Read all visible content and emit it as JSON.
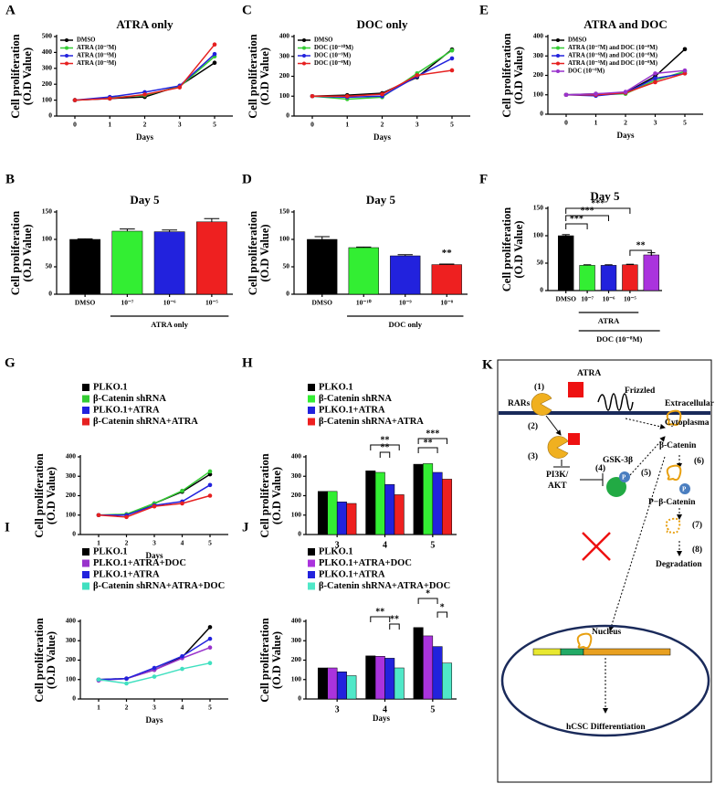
{
  "chart_data": [
    {
      "panel": "A",
      "type": "line",
      "title": "ATRA only",
      "ylabel": [
        "Cell proliferation",
        "(O.D Value)"
      ],
      "xlabel": "Days",
      "categories": [
        "0",
        "1",
        "2",
        "3",
        "5"
      ],
      "ylim": [
        0,
        500
      ],
      "yticks": [
        0,
        100,
        200,
        300,
        400,
        500
      ],
      "legend": "upper left",
      "series": [
        {
          "name": "DMSO",
          "color": "#000000",
          "values": [
            100,
            110,
            120,
            190,
            335
          ]
        },
        {
          "name": "ATRA (10⁻⁷M)",
          "color": "#33cc33",
          "values": [
            100,
            115,
            130,
            185,
            375
          ]
        },
        {
          "name": "ATRA (10⁻⁶M)",
          "color": "#2222dd",
          "values": [
            100,
            120,
            150,
            190,
            390
          ]
        },
        {
          "name": "ATRA (10⁻⁵M)",
          "color": "#e62020",
          "values": [
            100,
            110,
            135,
            180,
            450
          ]
        }
      ]
    },
    {
      "panel": "B",
      "type": "bar",
      "title": "Day 5",
      "ylabel": [
        "Cell proliferation",
        "(O.D Value)"
      ],
      "categories": [
        "DMSO",
        "10⁻⁷",
        "10⁻⁶",
        "10⁻⁵"
      ],
      "values": [
        100,
        115,
        114,
        132
      ],
      "errors": [
        1,
        4,
        3,
        6
      ],
      "colors": [
        "#000000",
        "#33ee33",
        "#2222dd",
        "#ee2020"
      ],
      "ylim": [
        0,
        150
      ],
      "yticks": [
        0,
        50,
        100,
        150
      ],
      "group_labels": [
        "ATRA only"
      ]
    },
    {
      "panel": "C",
      "type": "line",
      "title": "DOC only",
      "ylabel": [
        "Cell proliferation",
        "(O.D Value)"
      ],
      "xlabel": "Days",
      "categories": [
        "0",
        "1",
        "2",
        "3",
        "5"
      ],
      "ylim": [
        0,
        400
      ],
      "yticks": [
        0,
        100,
        200,
        300,
        400
      ],
      "legend": "upper left",
      "series": [
        {
          "name": "DMSO",
          "color": "#000000",
          "values": [
            100,
            105,
            115,
            195,
            335
          ]
        },
        {
          "name": "DOC (10⁻¹⁰M)",
          "color": "#33cc33",
          "values": [
            100,
            85,
            95,
            215,
            330
          ]
        },
        {
          "name": "DOC (10⁻⁹M)",
          "color": "#2222dd",
          "values": [
            100,
            95,
            100,
            200,
            290
          ]
        },
        {
          "name": "DOC (10⁻⁸M)",
          "color": "#e62020",
          "values": [
            100,
            100,
            110,
            205,
            230
          ]
        }
      ]
    },
    {
      "panel": "D",
      "type": "bar",
      "title": "Day 5",
      "ylabel": [
        "Cell proliferation",
        "(O.D Value)"
      ],
      "categories": [
        "DMSO",
        "10⁻¹⁰",
        "10⁻⁹",
        "10⁻⁸"
      ],
      "values": [
        100,
        85,
        70,
        54
      ],
      "errors": [
        5,
        1,
        2,
        1
      ],
      "colors": [
        "#000000",
        "#33ee33",
        "#2222dd",
        "#ee2020"
      ],
      "ylim": [
        0,
        150
      ],
      "yticks": [
        0,
        50,
        100,
        150
      ],
      "group_labels": [
        "DOC only"
      ],
      "annotations": [
        "**"
      ]
    },
    {
      "panel": "E",
      "type": "line",
      "title": "ATRA and DOC",
      "ylabel": [
        "Cell proliferation",
        "(O.D Value)"
      ],
      "xlabel": "Days",
      "categories": [
        "0",
        "1",
        "2",
        "3",
        "5"
      ],
      "ylim": [
        0,
        400
      ],
      "yticks": [
        0,
        100,
        200,
        300,
        400
      ],
      "legend": "upper left",
      "series": [
        {
          "name": "DMSO",
          "color": "#000000",
          "values": [
            100,
            105,
            110,
            195,
            335
          ]
        },
        {
          "name": "ATRA (10⁻⁷M) and DOC (10⁻⁸M)",
          "color": "#33cc33",
          "values": [
            100,
            100,
            105,
            175,
            220
          ]
        },
        {
          "name": "ATRA (10⁻⁶M) and DOC (10⁻⁸M)",
          "color": "#2222dd",
          "values": [
            100,
            95,
            110,
            185,
            210
          ]
        },
        {
          "name": "ATRA (10⁻⁵M) and DOC (10⁻⁸M)",
          "color": "#e62020",
          "values": [
            100,
            100,
            110,
            165,
            210
          ]
        },
        {
          "name": "DOC (10⁻⁸M)",
          "color": "#9933cc",
          "values": [
            100,
            105,
            115,
            210,
            225
          ]
        }
      ]
    },
    {
      "panel": "F",
      "type": "bar",
      "title": "Day 5",
      "ylabel": [
        "Cell proliferation",
        "(O.D Value)"
      ],
      "categories": [
        "DMSO",
        "10⁻⁷",
        "10⁻⁶",
        "10⁻⁵",
        null
      ],
      "values": [
        100,
        46,
        46,
        47,
        65
      ],
      "errors": [
        2,
        1,
        1,
        1,
        4
      ],
      "colors": [
        "#000000",
        "#33ee33",
        "#2222dd",
        "#ee2020",
        "#aa33dd"
      ],
      "ylim": [
        0,
        150
      ],
      "yticks": [
        0,
        50,
        100,
        150
      ],
      "group_labels": [
        "ATRA",
        "DOC (10⁻⁸M)"
      ],
      "annotations": [
        "***",
        "***",
        "***",
        "**"
      ]
    },
    {
      "panel": "G",
      "type": "line",
      "ylabel": [
        "Cell proliferation",
        "(O.D Value)"
      ],
      "xlabel": "Days",
      "categories": [
        "1",
        "2",
        "3",
        "4",
        "5"
      ],
      "ylim": [
        0,
        400
      ],
      "yticks": [
        0,
        100,
        200,
        300,
        400
      ],
      "legend": "top",
      "series": [
        {
          "name": "PLKO.1",
          "color": "#000000",
          "values": [
            100,
            100,
            160,
            220,
            310
          ]
        },
        {
          "name": "β-Catenin shRNA",
          "color": "#33cc33",
          "values": [
            100,
            105,
            160,
            225,
            325
          ]
        },
        {
          "name": "PLKO.1+ATRA",
          "color": "#2222dd",
          "values": [
            100,
            100,
            150,
            170,
            255
          ]
        },
        {
          "name": "β-Catenin shRNA+ATRA",
          "color": "#e62020",
          "values": [
            100,
            90,
            145,
            160,
            200
          ]
        }
      ]
    },
    {
      "panel": "H",
      "type": "grouped_bar",
      "ylabel": [
        "Cell proliferation",
        "(O.D Value)"
      ],
      "categories": [
        "3",
        "4",
        "5"
      ],
      "ylim": [
        0,
        400
      ],
      "yticks": [
        0,
        100,
        200,
        300,
        400
      ],
      "legend": "top",
      "series": [
        {
          "name": "PLKO.1",
          "color": "#000000",
          "values": [
            222,
            328,
            362
          ]
        },
        {
          "name": "β-Catenin shRNA",
          "color": "#33ee33",
          "values": [
            222,
            320,
            365
          ]
        },
        {
          "name": "PLKO.1+ATRA",
          "color": "#2222dd",
          "values": [
            168,
            258,
            320
          ]
        },
        {
          "name": "β-Catenin shRNA+ATRA",
          "color": "#ee2020",
          "values": [
            160,
            205,
            285
          ]
        }
      ],
      "annotations": [
        "**",
        "**",
        "**",
        "***"
      ]
    },
    {
      "panel": "I",
      "type": "line",
      "ylabel": [
        "Cell proliferation",
        "(O.D Value)"
      ],
      "xlabel": "Days",
      "categories": [
        "1",
        "2",
        "3",
        "4",
        "5"
      ],
      "ylim": [
        0,
        400
      ],
      "yticks": [
        0,
        100,
        200,
        300,
        400
      ],
      "legend": "top",
      "series": [
        {
          "name": "PLKO.1",
          "color": "#000000",
          "values": [
            100,
            105,
            150,
            215,
            370
          ]
        },
        {
          "name": "PLKO.1+ATRA+DOC",
          "color": "#9933cc",
          "values": [
            95,
            105,
            150,
            210,
            265
          ]
        },
        {
          "name": "PLKO.1+ATRA",
          "color": "#2222dd",
          "values": [
            100,
            105,
            160,
            220,
            310
          ]
        },
        {
          "name": "β-Catenin shRNA+ATRA+DOC",
          "color": "#40e0c0",
          "values": [
            100,
            80,
            115,
            155,
            185
          ]
        }
      ]
    },
    {
      "panel": "J",
      "type": "grouped_bar",
      "ylabel": [
        "Cell proliferation",
        "(O.D Value)"
      ],
      "xlabel": "Days",
      "categories": [
        "3",
        "4",
        "5"
      ],
      "ylim": [
        0,
        400
      ],
      "yticks": [
        0,
        100,
        200,
        300,
        400
      ],
      "legend": "top",
      "series": [
        {
          "name": "PLKO.1",
          "color": "#000000",
          "values": [
            160,
            222,
            368
          ]
        },
        {
          "name": "PLKO.1+ATRA+DOC",
          "color": "#aa33dd",
          "values": [
            160,
            220,
            325
          ]
        },
        {
          "name": "PLKO.1+ATRA",
          "color": "#2222dd",
          "values": [
            140,
            210,
            270
          ]
        },
        {
          "name": "β-Catenin shRNA+ATRA+DOC",
          "color": "#50e8c8",
          "values": [
            120,
            160,
            185
          ]
        }
      ],
      "annotations": [
        "**",
        "**",
        "*",
        "*"
      ]
    }
  ],
  "diagram": {
    "panel": "K",
    "labels": {
      "atra": "ATRA",
      "step1": "(1)",
      "rars": "RARs",
      "frizzled": "Frizzled",
      "extracellular": "Extracellular",
      "cytoplasma": "Cytoplasma",
      "step2": "(2)",
      "step3": "(3)",
      "pi3k": "PI3K/",
      "akt": "AKT",
      "step4": "(4)",
      "gsk": "GSK-3β",
      "p1": "P",
      "step5": "(5)",
      "catenin": "β-Catenin",
      "step6": "(6)",
      "p2": "P",
      "pcatenin": "P−β-Catenin",
      "step7": "(7)",
      "step8": "(8)",
      "degradation": "Degradation",
      "nucleus": "Nucleus",
      "differentiation": "hCSC Differentiation"
    }
  }
}
